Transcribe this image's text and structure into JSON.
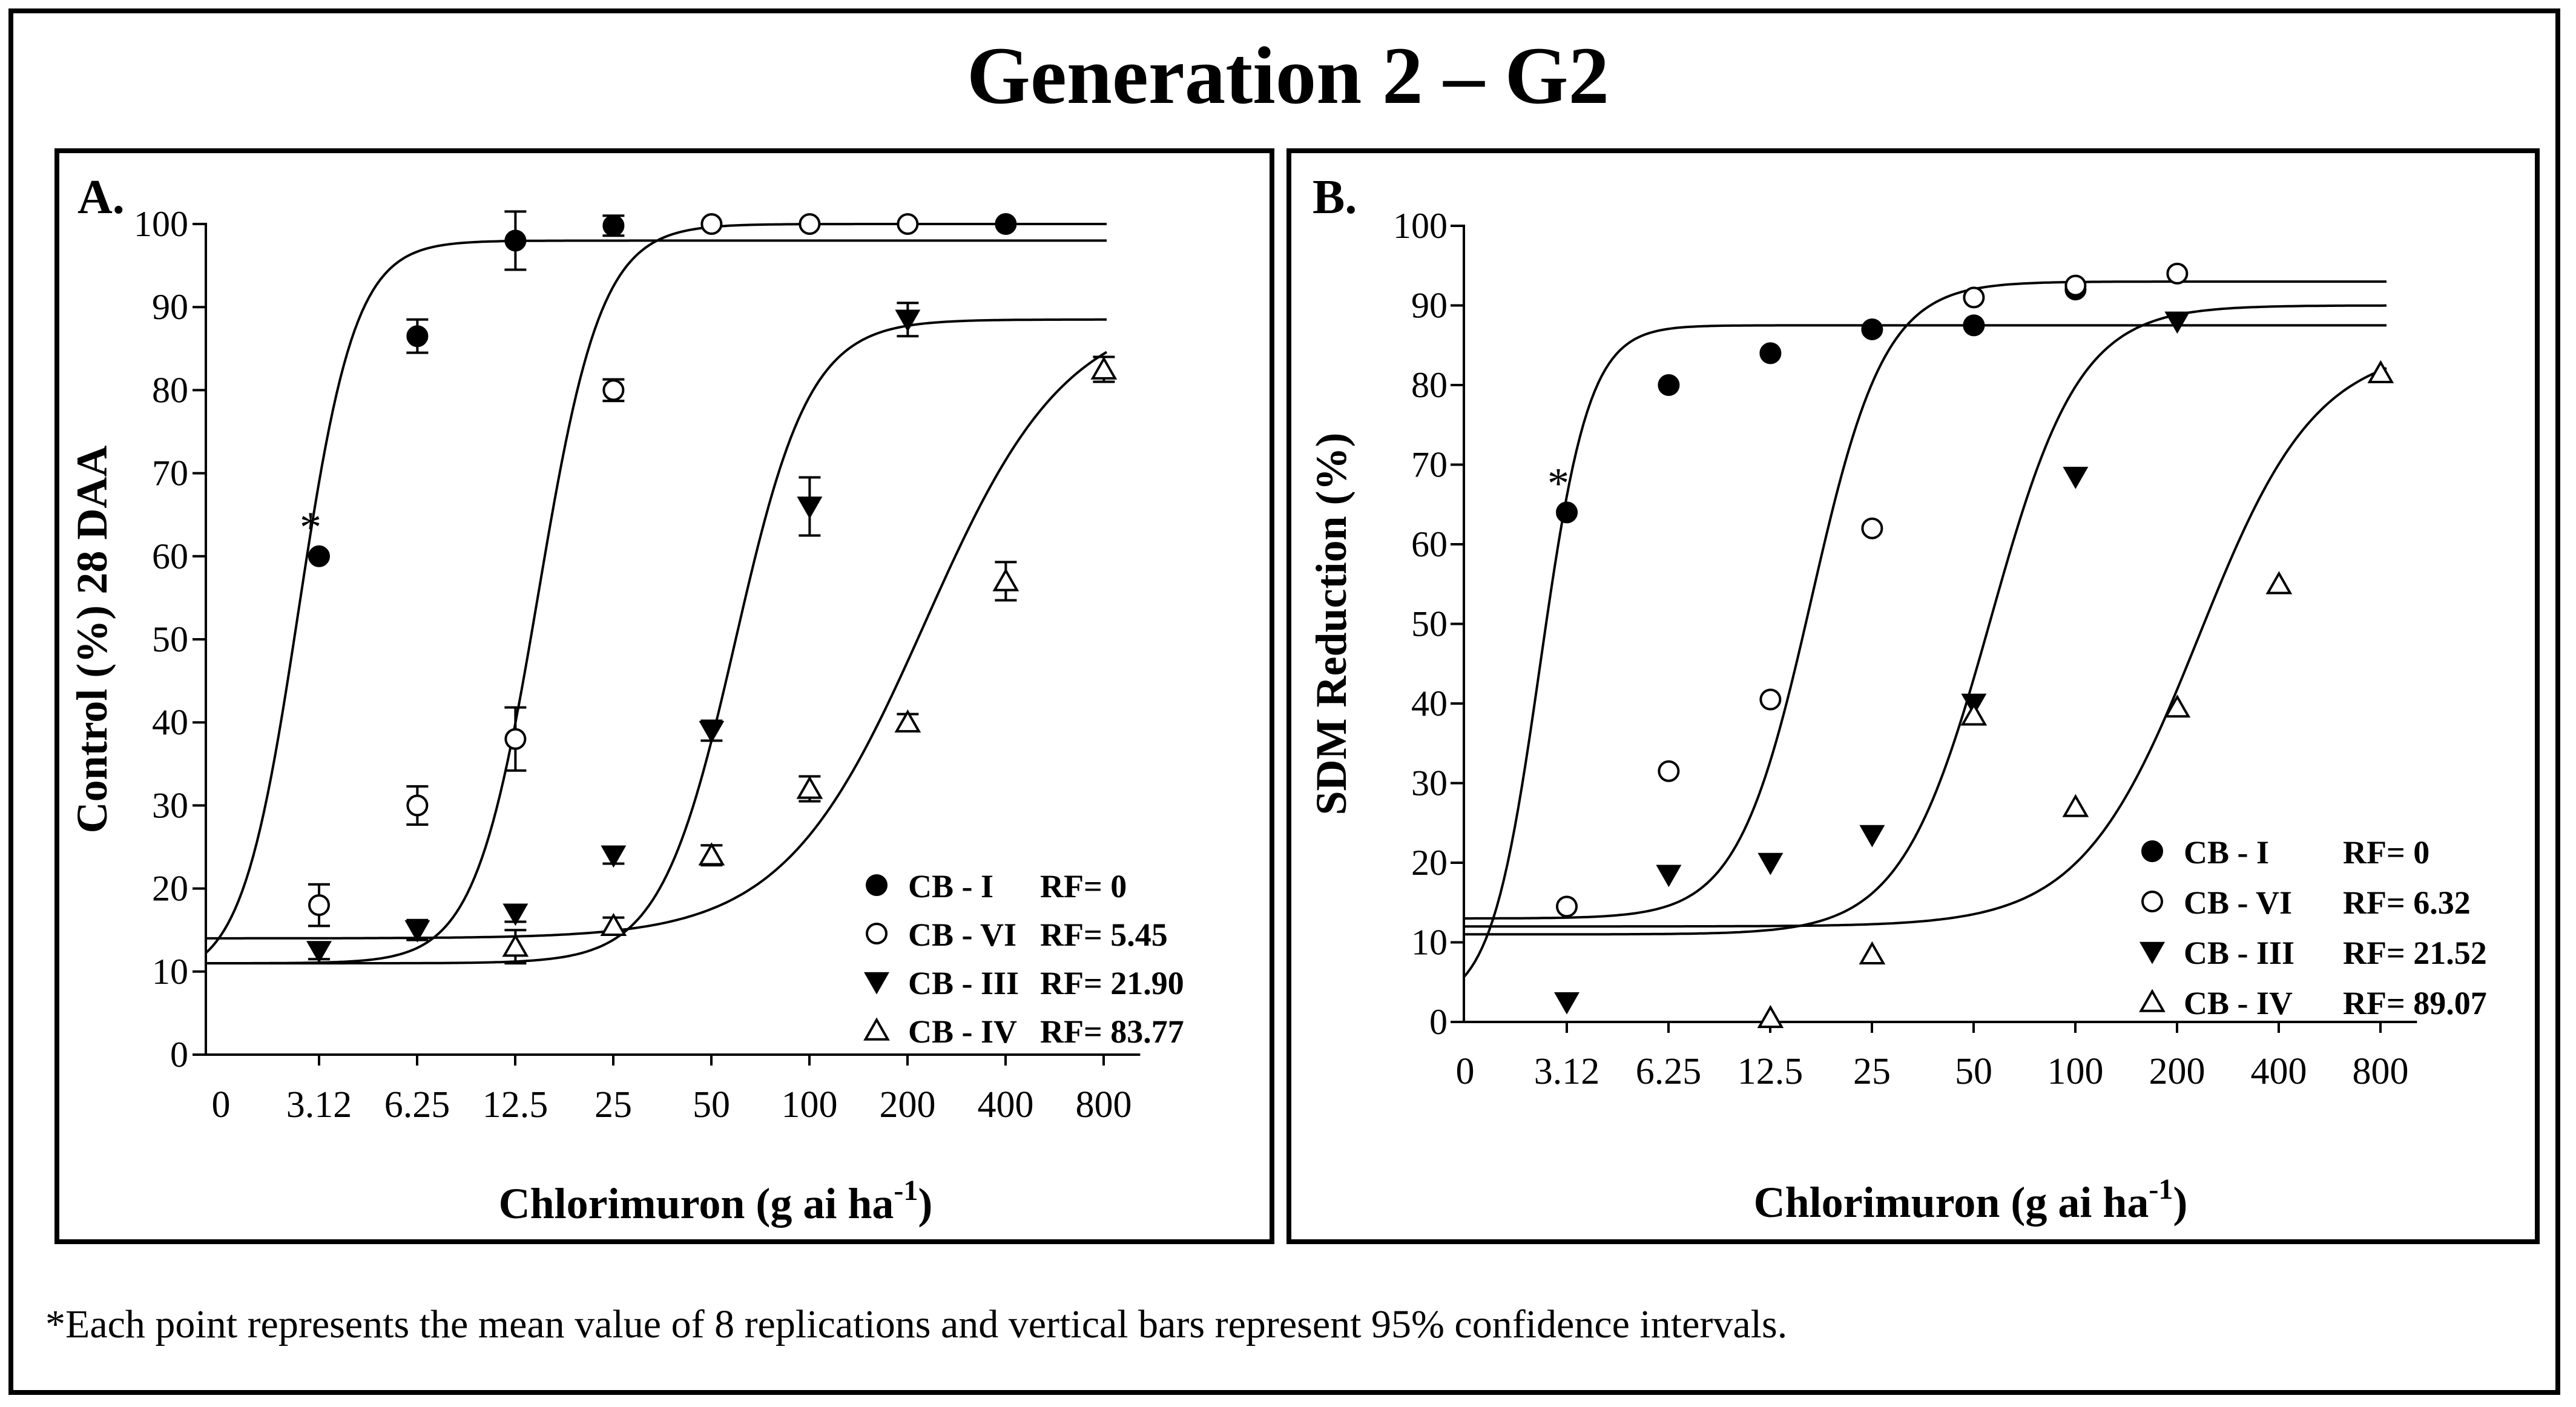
{
  "figure": {
    "title": "Generation 2 – G2",
    "footnote": "*Each point represents the mean value of 8 replications and vertical bars represent 95% confidence intervals."
  },
  "chart_data": [
    {
      "type": "scatter",
      "panel_label": "A.",
      "title": "",
      "xlabel_main": "Chlorimuron (g ai ha",
      "xlabel_sup": "-1",
      "xlabel_end": ")",
      "ylabel": "Control (%) 28 DAA",
      "x_tick_labels": [
        "0",
        "3.12",
        "6.25",
        "12.5",
        "25",
        "50",
        "100",
        "200",
        "400",
        "800"
      ],
      "y_ticks": [
        0,
        10,
        20,
        30,
        40,
        50,
        60,
        70,
        80,
        90,
        100
      ],
      "ylim": [
        0,
        100
      ],
      "annotation": {
        "text": "*",
        "x": 3.12,
        "y": 60
      },
      "legend_position": "bottom-right",
      "series": [
        {
          "name": "CB - I",
          "rf": "RF= 0",
          "marker": "filled-circle",
          "x": [
            3.12,
            6.25,
            12.5,
            25,
            400
          ],
          "y": [
            60,
            86.5,
            98,
            99.8,
            100
          ],
          "err": [
            0,
            2,
            3.5,
            1.2,
            0.5
          ],
          "fit": {
            "bottom": 9,
            "top": 98,
            "ed50": 2.7,
            "slope": 5
          }
        },
        {
          "name": "CB - VI",
          "rf": "RF= 5.45",
          "marker": "open-circle",
          "x": [
            3.12,
            6.25,
            12.5,
            25,
            50,
            100,
            200
          ],
          "y": [
            18,
            30,
            38,
            80,
            100,
            100,
            100
          ],
          "err": [
            2.5,
            2.3,
            3.8,
            1.3,
            0.3,
            0.3,
            0.3
          ],
          "fit": {
            "bottom": 11,
            "top": 100,
            "ed50": 14.7,
            "slope": 4.5
          }
        },
        {
          "name": "CB - III",
          "rf": "RF= 21.90",
          "marker": "filled-triangle-down",
          "x": [
            3.12,
            6.25,
            12.5,
            25,
            50,
            100,
            200
          ],
          "y": [
            12.5,
            15,
            17,
            24,
            39,
            66,
            88.5
          ],
          "err": [
            1,
            1.2,
            1,
            1,
            1.2,
            3.5,
            2
          ],
          "fit": {
            "bottom": 11,
            "top": 88.5,
            "ed50": 59.1,
            "slope": 3.8
          }
        },
        {
          "name": "CB - IV",
          "rf": "RF= 83.77",
          "marker": "open-triangle-up",
          "x": [
            12.5,
            25,
            50,
            100,
            200,
            400,
            800
          ],
          "y": [
            13,
            15.5,
            24,
            32,
            40,
            57,
            82.5
          ],
          "err": [
            2,
            1,
            1.2,
            1.5,
            1,
            2.3,
            1.5
          ],
          "fit": {
            "bottom": 14,
            "top": 90,
            "ed50": 226,
            "slope": 2
          }
        }
      ]
    },
    {
      "type": "scatter",
      "panel_label": "B.",
      "title": "",
      "xlabel_main": "Chlorimuron (g ai ha",
      "xlabel_sup": "-1",
      "xlabel_end": ")",
      "ylabel": "SDM Reduction (%)",
      "x_tick_labels": [
        "0",
        "3.12",
        "6.25",
        "12.5",
        "25",
        "50",
        "100",
        "200",
        "400",
        "800"
      ],
      "y_ticks": [
        0,
        10,
        20,
        30,
        40,
        50,
        60,
        70,
        80,
        90,
        100
      ],
      "ylim": [
        0,
        100
      ],
      "annotation": {
        "text": "*",
        "x": 3.12,
        "y": 64
      },
      "legend_position": "bottom-right",
      "series": [
        {
          "name": "CB - I",
          "rf": "RF= 0",
          "marker": "filled-circle",
          "x": [
            3.12,
            6.25,
            12.5,
            25,
            50,
            100
          ],
          "y": [
            64,
            80,
            84,
            87,
            87.5,
            92
          ],
          "fit": {
            "bottom": 2,
            "top": 87.5,
            "ed50": 2.6,
            "slope": 6
          }
        },
        {
          "name": "CB - VI",
          "rf": "RF= 6.32",
          "marker": "open-circle",
          "x": [
            3.12,
            6.25,
            12.5,
            25,
            50,
            100,
            200
          ],
          "y": [
            14.5,
            31.5,
            40.5,
            62,
            91,
            92.5,
            94
          ],
          "fit": {
            "bottom": 13,
            "top": 93,
            "ed50": 16.5,
            "slope": 4
          }
        },
        {
          "name": "CB - III",
          "rf": "RF= 21.52",
          "marker": "filled-triangle-down",
          "x": [
            3.12,
            6.25,
            12.5,
            25,
            50,
            100,
            200
          ],
          "y": [
            2.5,
            18.5,
            20,
            23.5,
            40,
            68.5,
            88
          ],
          "fit": {
            "bottom": 11,
            "top": 90,
            "ed50": 56,
            "slope": 3.3
          }
        },
        {
          "name": "CB - IV",
          "rf": "RF= 89.07",
          "marker": "open-triangle-up",
          "x": [
            12.5,
            25,
            50,
            100,
            200,
            400,
            800
          ],
          "y": [
            0.5,
            8.5,
            38.5,
            27,
            39.5,
            55,
            81.5
          ],
          "fit": {
            "bottom": 12,
            "top": 85,
            "ed50": 232,
            "slope": 2.5
          }
        }
      ]
    }
  ]
}
